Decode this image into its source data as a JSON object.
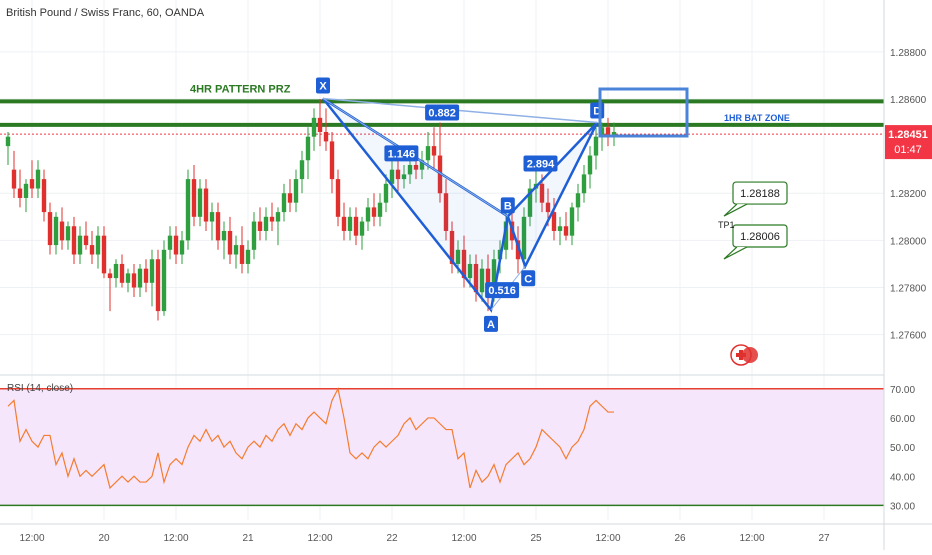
{
  "header": {
    "title": "British Pound / Swiss Franc, 60, OANDA"
  },
  "colors": {
    "up": "#2e9e3e",
    "down": "#e0302e",
    "pattern": "#1f5fd6",
    "level": "#2b7a23",
    "last_price": "#f23645",
    "rsi_line": "#f57c2e",
    "rsi_band": "#f6e6fb",
    "rsi_bound": "#e6402d"
  },
  "chart_data": {
    "type": "candlestick",
    "price_axis": {
      "range": [
        1.2745,
        1.2902
      ],
      "ticks": [
        "1.28800",
        "1.28600",
        "1.28200",
        "1.28000",
        "1.27800",
        "1.27600"
      ],
      "tick_values": [
        1.288,
        1.286,
        1.282,
        1.28,
        1.278,
        1.276
      ]
    },
    "last_price": {
      "value": 1.28451,
      "label": "1.28451",
      "countdown": "01:47"
    },
    "time_axis": {
      "labels": [
        "12:00",
        "20",
        "12:00",
        "21",
        "12:00",
        "22",
        "12:00",
        "25",
        "12:00",
        "26",
        "12:00",
        "27"
      ],
      "bar_index": [
        4,
        16,
        28,
        40,
        52,
        64,
        76,
        88,
        100,
        112,
        124,
        136
      ]
    },
    "levels": [
      {
        "price": 1.2859,
        "label": "4HR PATTERN PRZ"
      },
      {
        "price": 1.2849,
        "label": "1HR BAT ZONE"
      }
    ],
    "pattern": {
      "points": [
        {
          "name": "X",
          "bar": 52.5,
          "price": 1.28602
        },
        {
          "name": "A",
          "bar": 80.5,
          "price": 1.27705
        },
        {
          "name": "B",
          "bar": 83.3,
          "price": 1.28102
        },
        {
          "name": "C",
          "bar": 86.2,
          "price": 1.2789
        },
        {
          "name": "D",
          "bar": 98.2,
          "price": 1.285
        }
      ],
      "ratios": [
        "0.882",
        "1.146",
        "0.516",
        "2.894"
      ]
    },
    "targets": [
      {
        "label": "1.28188",
        "price": 1.28188
      },
      {
        "label": "1.28006",
        "price": 1.28006
      }
    ],
    "target_tag": "TP1",
    "candles": [
      [
        1.284,
        1.2846,
        1.2832,
        1.2844
      ],
      [
        1.283,
        1.2838,
        1.2818,
        1.2822
      ],
      [
        1.2822,
        1.283,
        1.2814,
        1.2818
      ],
      [
        1.2818,
        1.2826,
        1.2812,
        1.2824
      ],
      [
        1.2826,
        1.2834,
        1.2818,
        1.2822
      ],
      [
        1.2822,
        1.2834,
        1.2818,
        1.283
      ],
      [
        1.2826,
        1.283,
        1.2808,
        1.2812
      ],
      [
        1.2812,
        1.2816,
        1.2794,
        1.2798
      ],
      [
        1.2798,
        1.2812,
        1.2794,
        1.281
      ],
      [
        1.2808,
        1.2814,
        1.2796,
        1.28
      ],
      [
        1.28,
        1.2808,
        1.2796,
        1.2806
      ],
      [
        1.2806,
        1.281,
        1.279,
        1.2794
      ],
      [
        1.2794,
        1.2806,
        1.279,
        1.2802
      ],
      [
        1.2802,
        1.2808,
        1.2796,
        1.2798
      ],
      [
        1.2798,
        1.2804,
        1.279,
        1.2794
      ],
      [
        1.2794,
        1.2806,
        1.2788,
        1.2802
      ],
      [
        1.2802,
        1.2806,
        1.2784,
        1.2786
      ],
      [
        1.2786,
        1.2788,
        1.277,
        1.2784
      ],
      [
        1.2784,
        1.2792,
        1.278,
        1.279
      ],
      [
        1.279,
        1.2794,
        1.278,
        1.2782
      ],
      [
        1.2782,
        1.2788,
        1.2778,
        1.2786
      ],
      [
        1.2786,
        1.279,
        1.2776,
        1.278
      ],
      [
        1.278,
        1.279,
        1.2776,
        1.2788
      ],
      [
        1.2788,
        1.2792,
        1.2778,
        1.2782
      ],
      [
        1.2782,
        1.2796,
        1.2772,
        1.2792
      ],
      [
        1.2792,
        1.2796,
        1.2766,
        1.277
      ],
      [
        1.277,
        1.28,
        1.2768,
        1.2796
      ],
      [
        1.2796,
        1.2806,
        1.2792,
        1.2802
      ],
      [
        1.2802,
        1.2806,
        1.279,
        1.2794
      ],
      [
        1.2794,
        1.2804,
        1.279,
        1.28
      ],
      [
        1.28,
        1.283,
        1.2796,
        1.2826
      ],
      [
        1.2826,
        1.2832,
        1.2806,
        1.281
      ],
      [
        1.281,
        1.2826,
        1.2806,
        1.2822
      ],
      [
        1.2822,
        1.2826,
        1.2804,
        1.2808
      ],
      [
        1.2808,
        1.2816,
        1.28,
        1.2812
      ],
      [
        1.2812,
        1.2816,
        1.2796,
        1.28
      ],
      [
        1.28,
        1.2808,
        1.2792,
        1.2804
      ],
      [
        1.2804,
        1.281,
        1.279,
        1.2794
      ],
      [
        1.2794,
        1.2802,
        1.2788,
        1.2798
      ],
      [
        1.2798,
        1.2806,
        1.2786,
        1.279
      ],
      [
        1.279,
        1.28,
        1.2786,
        1.2796
      ],
      [
        1.2796,
        1.2812,
        1.2792,
        1.2808
      ],
      [
        1.2808,
        1.2814,
        1.28,
        1.2804
      ],
      [
        1.2804,
        1.2814,
        1.28,
        1.281
      ],
      [
        1.281,
        1.2816,
        1.2804,
        1.2808
      ],
      [
        1.2808,
        1.2814,
        1.2798,
        1.2812
      ],
      [
        1.2812,
        1.2824,
        1.2808,
        1.282
      ],
      [
        1.282,
        1.2826,
        1.2812,
        1.2816
      ],
      [
        1.2816,
        1.283,
        1.2812,
        1.2826
      ],
      [
        1.2826,
        1.2838,
        1.282,
        1.2834
      ],
      [
        1.2834,
        1.2848,
        1.2826,
        1.2844
      ],
      [
        1.2844,
        1.2856,
        1.2838,
        1.2852
      ],
      [
        1.2852,
        1.286,
        1.284,
        1.2846
      ],
      [
        1.2846,
        1.2856,
        1.2838,
        1.2842
      ],
      [
        1.2842,
        1.2846,
        1.282,
        1.2826
      ],
      [
        1.2826,
        1.283,
        1.2806,
        1.281
      ],
      [
        1.281,
        1.2816,
        1.28,
        1.2804
      ],
      [
        1.2804,
        1.2814,
        1.28,
        1.281
      ],
      [
        1.281,
        1.2814,
        1.2798,
        1.2802
      ],
      [
        1.2802,
        1.281,
        1.2796,
        1.2808
      ],
      [
        1.2808,
        1.2818,
        1.2804,
        1.2814
      ],
      [
        1.2814,
        1.282,
        1.2806,
        1.281
      ],
      [
        1.281,
        1.282,
        1.2806,
        1.2816
      ],
      [
        1.2816,
        1.2828,
        1.2812,
        1.2824
      ],
      [
        1.2824,
        1.2834,
        1.2818,
        1.283
      ],
      [
        1.283,
        1.2836,
        1.282,
        1.2826
      ],
      [
        1.2826,
        1.2832,
        1.2822,
        1.2828
      ],
      [
        1.2828,
        1.2836,
        1.2824,
        1.2832
      ],
      [
        1.2832,
        1.2838,
        1.2826,
        1.283
      ],
      [
        1.283,
        1.2838,
        1.2826,
        1.2834
      ],
      [
        1.2834,
        1.2846,
        1.283,
        1.284
      ],
      [
        1.284,
        1.2848,
        1.283,
        1.2836
      ],
      [
        1.2836,
        1.285,
        1.2816,
        1.282
      ],
      [
        1.282,
        1.2826,
        1.28,
        1.2804
      ],
      [
        1.2804,
        1.2808,
        1.2786,
        1.279
      ],
      [
        1.279,
        1.28,
        1.2786,
        1.2796
      ],
      [
        1.2796,
        1.2802,
        1.278,
        1.2784
      ],
      [
        1.2784,
        1.2794,
        1.278,
        1.279
      ],
      [
        1.279,
        1.2794,
        1.2774,
        1.2778
      ],
      [
        1.2778,
        1.2792,
        1.2774,
        1.2788
      ],
      [
        1.2788,
        1.2794,
        1.277,
        1.2776
      ],
      [
        1.2776,
        1.2796,
        1.2774,
        1.2792
      ],
      [
        1.2792,
        1.28,
        1.2786,
        1.2796
      ],
      [
        1.2796,
        1.2812,
        1.2792,
        1.2808
      ],
      [
        1.2808,
        1.2812,
        1.2796,
        1.28
      ],
      [
        1.28,
        1.2806,
        1.2786,
        1.2792
      ],
      [
        1.2792,
        1.2814,
        1.2788,
        1.281
      ],
      [
        1.281,
        1.2826,
        1.2806,
        1.2822
      ],
      [
        1.2822,
        1.283,
        1.2816,
        1.2824
      ],
      [
        1.2824,
        1.2828,
        1.2812,
        1.2816
      ],
      [
        1.2816,
        1.2822,
        1.2806,
        1.2812
      ],
      [
        1.2812,
        1.2818,
        1.28,
        1.2804
      ],
      [
        1.2804,
        1.281,
        1.2798,
        1.2806
      ],
      [
        1.2806,
        1.2812,
        1.28,
        1.2802
      ],
      [
        1.2802,
        1.2816,
        1.2798,
        1.2814
      ],
      [
        1.2814,
        1.2824,
        1.2808,
        1.282
      ],
      [
        1.282,
        1.2832,
        1.2816,
        1.2828
      ],
      [
        1.2828,
        1.284,
        1.2822,
        1.2836
      ],
      [
        1.2836,
        1.2848,
        1.283,
        1.2844
      ],
      [
        1.2844,
        1.285,
        1.2838,
        1.2848
      ],
      [
        1.2848,
        1.2852,
        1.284,
        1.2844
      ],
      [
        1.2844,
        1.285,
        1.284,
        1.2846
      ]
    ]
  },
  "rsi": {
    "label": "RSI (14, close)",
    "range": [
      25,
      73
    ],
    "ticks": [
      "70.00",
      "60.00",
      "50.00",
      "40.00",
      "30.00"
    ],
    "tick_values": [
      70,
      60,
      50,
      40,
      30
    ],
    "upper": 70,
    "lower": 30,
    "values": [
      64,
      66,
      52,
      56,
      52,
      50,
      54,
      54,
      44,
      48,
      40,
      46,
      40,
      42,
      40,
      42,
      44,
      36,
      38,
      40,
      38,
      40,
      38,
      38,
      40,
      48,
      38,
      44,
      46,
      44,
      50,
      54,
      52,
      56,
      52,
      54,
      50,
      52,
      48,
      46,
      50,
      52,
      50,
      54,
      52,
      56,
      58,
      54,
      58,
      56,
      60,
      62,
      60,
      58,
      66,
      70,
      60,
      48,
      46,
      48,
      46,
      50,
      52,
      50,
      52,
      54,
      58,
      60,
      56,
      58,
      60,
      60,
      58,
      56,
      56,
      46,
      48,
      36,
      42,
      38,
      40,
      44,
      38,
      44,
      46,
      48,
      44,
      46,
      50,
      56,
      54,
      52,
      50,
      46,
      50,
      52,
      56,
      64,
      66,
      64,
      62,
      62
    ]
  },
  "watermark": "tradingview-logo-icon"
}
